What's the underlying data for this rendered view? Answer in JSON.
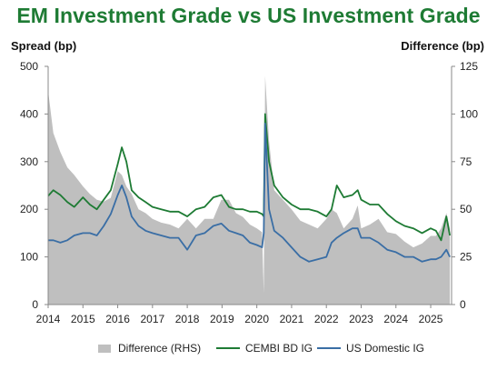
{
  "chart_data": {
    "type": "line",
    "title": "EM Investment Grade vs US Investment Grade",
    "ylabel": "Spread (bp)",
    "y2label": "Difference (bp)",
    "ylim": [
      0,
      500
    ],
    "y2lim": [
      0,
      125
    ],
    "yticks": [
      0,
      100,
      200,
      300,
      400,
      500
    ],
    "y2ticks": [
      0,
      25,
      50,
      75,
      100,
      125
    ],
    "xlim": [
      2014,
      2025.6
    ],
    "xticks": [
      "2014",
      "2015",
      "2016",
      "2017",
      "2018",
      "2019",
      "2020",
      "2021",
      "2022",
      "2023",
      "2024",
      "2025"
    ],
    "x": [
      2014.0,
      2014.15,
      2014.35,
      2014.55,
      2014.75,
      2015.0,
      2015.2,
      2015.4,
      2015.6,
      2015.8,
      2016.0,
      2016.12,
      2016.25,
      2016.4,
      2016.6,
      2016.8,
      2017.0,
      2017.25,
      2017.5,
      2017.75,
      2018.0,
      2018.25,
      2018.5,
      2018.75,
      2018.98,
      2019.2,
      2019.4,
      2019.6,
      2019.8,
      2020.0,
      2020.15,
      2020.2,
      2020.24,
      2020.35,
      2020.5,
      2020.75,
      2021.0,
      2021.25,
      2021.5,
      2021.75,
      2022.0,
      2022.15,
      2022.3,
      2022.5,
      2022.75,
      2022.9,
      2023.0,
      2023.25,
      2023.5,
      2023.75,
      2024.0,
      2024.25,
      2024.5,
      2024.75,
      2025.0,
      2025.15,
      2025.3,
      2025.45,
      2025.55
    ],
    "series": [
      {
        "name": "Difference (RHS)",
        "axis": "right",
        "kind": "area",
        "color": "#bfbfbf",
        "values": [
          112,
          90,
          80,
          72,
          68,
          62,
          58,
          55,
          54,
          56,
          70,
          68,
          62,
          58,
          50,
          48,
          45,
          43,
          42,
          40,
          45,
          40,
          45,
          45,
          55,
          55,
          48,
          46,
          42,
          40,
          38,
          6,
          120,
          86,
          60,
          55,
          50,
          44,
          42,
          40,
          45,
          50,
          48,
          40,
          45,
          52,
          40,
          42,
          45,
          38,
          37,
          33,
          30,
          32,
          36,
          36,
          40,
          48,
          40
        ]
      },
      {
        "name": "CEMBI BD IG",
        "axis": "left",
        "kind": "line",
        "color": "#1e7b34",
        "values": [
          228,
          240,
          230,
          215,
          205,
          225,
          210,
          200,
          220,
          240,
          295,
          330,
          300,
          240,
          225,
          215,
          205,
          200,
          195,
          195,
          185,
          200,
          205,
          225,
          230,
          205,
          200,
          200,
          195,
          195,
          190,
          185,
          400,
          300,
          250,
          225,
          210,
          200,
          200,
          195,
          185,
          200,
          250,
          225,
          230,
          240,
          220,
          210,
          210,
          190,
          175,
          165,
          160,
          150,
          160,
          155,
          135,
          185,
          145
        ]
      },
      {
        "name": "US Domestic IG",
        "axis": "left",
        "kind": "line",
        "color": "#3a6ea5",
        "values": [
          135,
          135,
          130,
          135,
          145,
          150,
          150,
          145,
          165,
          190,
          230,
          250,
          225,
          185,
          165,
          155,
          150,
          145,
          140,
          140,
          115,
          145,
          150,
          165,
          170,
          155,
          150,
          145,
          130,
          125,
          120,
          150,
          380,
          200,
          155,
          140,
          120,
          100,
          90,
          95,
          100,
          130,
          140,
          150,
          160,
          160,
          140,
          140,
          130,
          115,
          110,
          100,
          100,
          90,
          95,
          95,
          100,
          115,
          100
        ]
      }
    ],
    "legend_position": "bottom",
    "grid": false
  }
}
